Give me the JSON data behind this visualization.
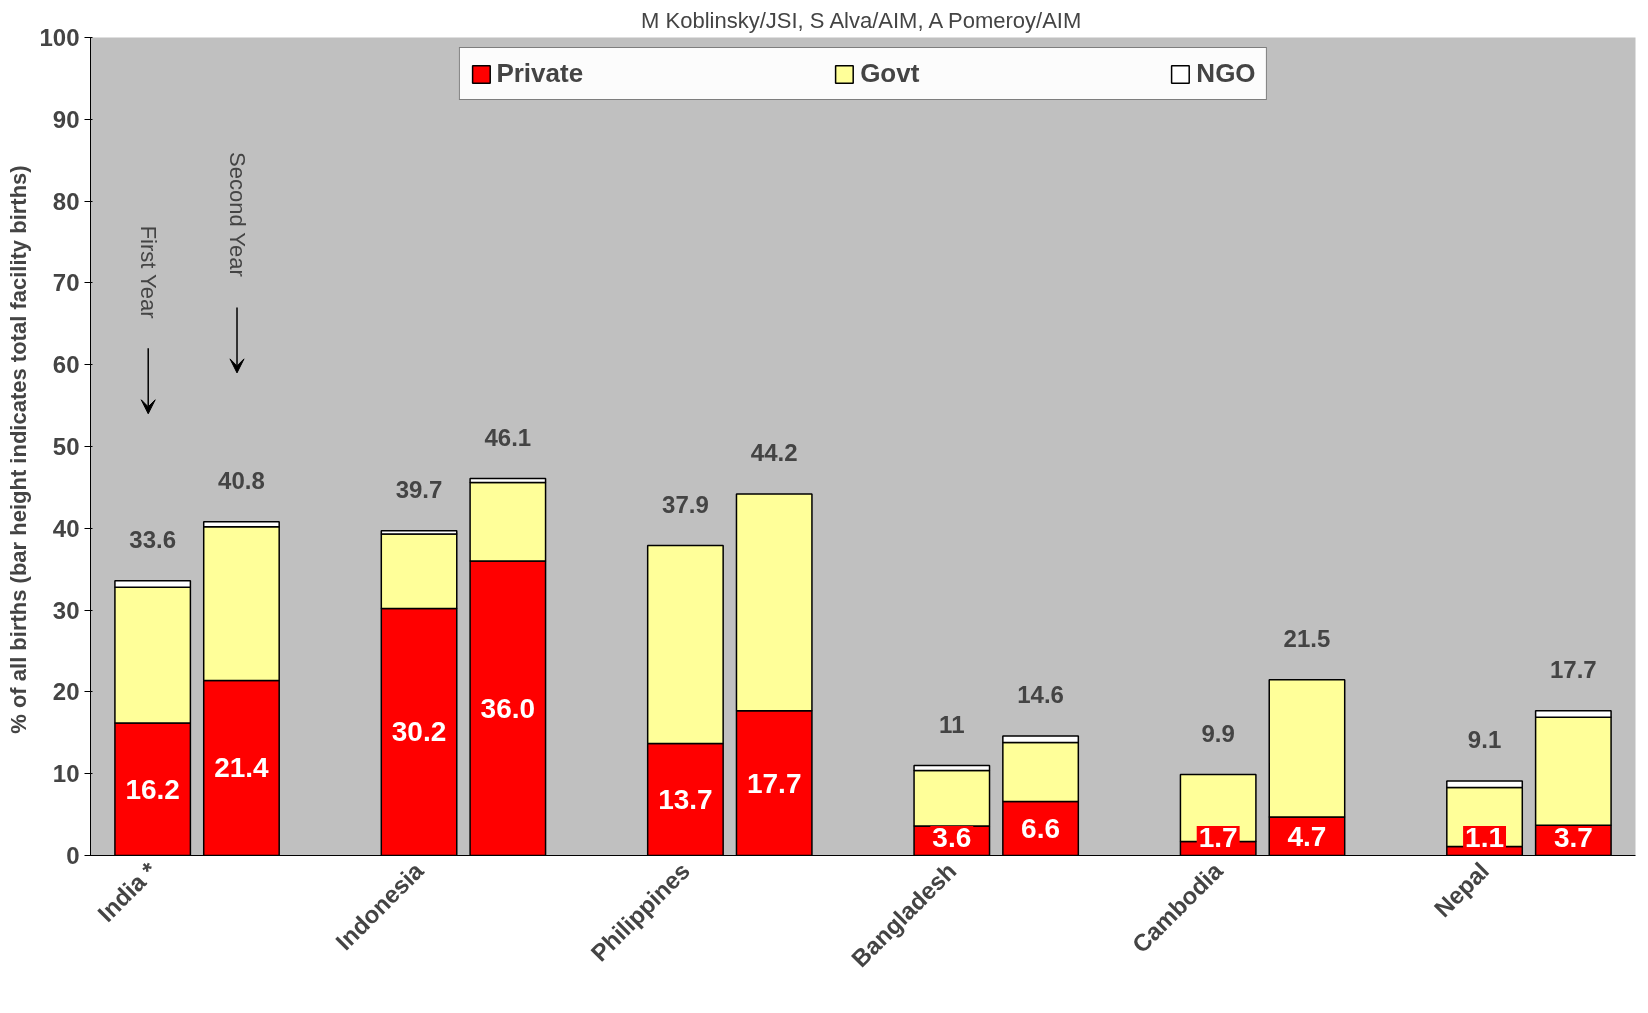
{
  "chart_data": {
    "type": "bar",
    "stacked": true,
    "title": "M Koblinsky/JSI, S Alva/AIM, A Pomeroy/AIM",
    "ylabel": "% of all births (bar height indicates total facility  births)",
    "categories": [
      "India *",
      null,
      null,
      "Indonesia",
      null,
      null,
      "Philippines",
      null,
      null,
      "Bangladesh",
      null,
      null,
      "Cambodia",
      null,
      null,
      "Nepal",
      null
    ],
    "series": [
      {
        "name": "Private",
        "color": "#ff0000",
        "values": [
          16.2,
          21.4,
          null,
          30.2,
          36.0,
          null,
          13.7,
          17.7,
          null,
          3.6,
          6.6,
          null,
          1.7,
          4.7,
          null,
          1.1,
          3.7
        ],
        "value_labels": [
          "16.2",
          "21.4",
          null,
          "30.2",
          "36.0",
          null,
          "13.7",
          "17.7",
          null,
          "3.6",
          "6.6",
          null,
          "1.7",
          "4.7",
          null,
          "1.1",
          "3.7"
        ]
      },
      {
        "name": "Govt",
        "color": "#ffff99",
        "values": [
          16.6,
          18.8,
          null,
          9.1,
          9.6,
          null,
          24.2,
          26.5,
          null,
          6.8,
          7.2,
          null,
          8.2,
          16.8,
          null,
          7.2,
          13.2
        ]
      },
      {
        "name": "NGO",
        "color": "#ffffff",
        "values": [
          0.8,
          0.6,
          null,
          0.4,
          0.5,
          null,
          0,
          0,
          null,
          0.6,
          0.8,
          null,
          0,
          0,
          null,
          0.8,
          0.8
        ]
      }
    ],
    "totals": [
      "33.6",
      "40.8",
      null,
      "39.7",
      "46.1",
      null,
      "37.9",
      "44.2",
      null,
      "11",
      "14.6",
      null,
      "9.9",
      "21.5",
      null,
      "9.1",
      "17.7"
    ],
    "annotations": [
      "First Year",
      "Second Year"
    ],
    "ylim": [
      0,
      100
    ],
    "yticks": [
      0,
      10,
      20,
      30,
      40,
      50,
      60,
      70,
      80,
      90,
      100
    ],
    "grid": false,
    "legend": "top"
  }
}
